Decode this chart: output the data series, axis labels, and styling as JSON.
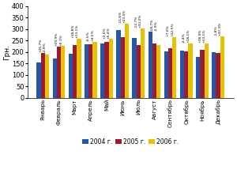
{
  "months": [
    "Январь",
    "Февраль",
    "Март",
    "Апрель",
    "Май",
    "Июнь",
    "Июль",
    "Август",
    "Сентябрь",
    "Октябрь",
    "Ноябрь",
    "Декабрь"
  ],
  "values_2004": [
    155,
    172,
    193,
    235,
    238,
    297,
    262,
    290,
    203,
    207,
    177,
    200
  ],
  "values_2005": [
    196,
    224,
    229,
    234,
    243,
    263,
    229,
    237,
    217,
    202,
    210,
    196
  ],
  "values_2006": [
    190,
    225,
    259,
    245,
    256,
    324,
    303,
    231,
    266,
    238,
    237,
    269
  ],
  "color_2004": "#2457a8",
  "color_2005": "#9b1b30",
  "color_2006": "#e8c200",
  "ylabel": "Грн.",
  "ylim": [
    0,
    400
  ],
  "yticks": [
    0,
    50,
    100,
    150,
    200,
    250,
    300,
    350,
    400
  ],
  "legend": [
    "2004 г.",
    "2005 г.",
    "2006 г."
  ],
  "ann_2005": [
    "+26,7%",
    "+29,9%",
    "+18,8%",
    "-0,5%",
    "+2,0%",
    "-11,6%",
    "-12,7%",
    "-18,7%",
    "+7,0%",
    "-2,4%",
    "+18,9%",
    "-1,8%"
  ],
  "ann_2006": [
    "-2,9%",
    "+0,1%",
    "+13,1%",
    "+4,5%",
    "+5,4%",
    "+23,3%",
    "+32,2%",
    "-2,9%",
    "+22,5%",
    "+18,1%",
    "+13,1%",
    "+37,3%"
  ]
}
